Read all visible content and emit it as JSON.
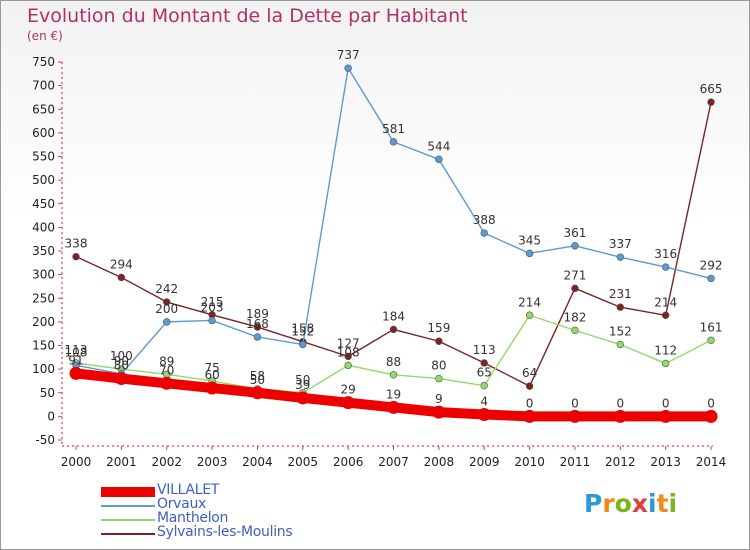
{
  "title": "Evolution du Montant de la Dette par Habitant",
  "subtitle": "(en €)",
  "logo_text": "Proxiti",
  "chart_data": {
    "type": "line",
    "categories": [
      "2000",
      "2001",
      "2002",
      "2003",
      "2004",
      "2005",
      "2006",
      "2007",
      "2008",
      "2009",
      "2010",
      "2011",
      "2012",
      "2013",
      "2014"
    ],
    "ylim": [
      -50,
      750
    ],
    "yticks": [
      -50,
      0,
      50,
      100,
      150,
      200,
      250,
      300,
      350,
      400,
      450,
      500,
      550,
      600,
      650,
      700,
      750
    ],
    "grid": false,
    "legend_position": "bottom-left",
    "series": [
      {
        "name": "VILLALET",
        "color": "#ee0000",
        "values": [
          91,
          80,
          70,
          60,
          50,
          39,
          29,
          19,
          9,
          4,
          0,
          0,
          0,
          0,
          0
        ]
      },
      {
        "name": "Orvaux",
        "color": "#5b9bd5",
        "values": [
          108,
          90,
          200,
          203,
          168,
          152,
          737,
          581,
          544,
          388,
          345,
          361,
          337,
          316,
          292
        ]
      },
      {
        "name": "Manthelon",
        "color": "#8fdb6a",
        "values": [
          113,
          100,
          89,
          75,
          58,
          50,
          108,
          88,
          80,
          65,
          214,
          182,
          152,
          112,
          161
        ]
      },
      {
        "name": "Sylvains-les-Moulins",
        "color": "#7a2424",
        "values": [
          338,
          294,
          242,
          215,
          189,
          158,
          127,
          184,
          159,
          113,
          64,
          271,
          231,
          214,
          665
        ]
      }
    ]
  }
}
